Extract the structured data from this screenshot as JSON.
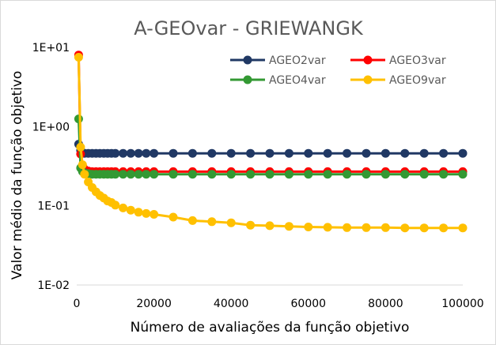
{
  "chart_data": {
    "type": "line",
    "title": "A-GEOvar - GRIEWANGK",
    "xlabel": "Número de avaliações da função objetivo",
    "ylabel": "Valor médio da função objetivo",
    "xlim": [
      0,
      100000
    ],
    "ylim": [
      0.01,
      10
    ],
    "yscale": "log",
    "x_ticks": [
      0,
      20000,
      40000,
      60000,
      80000,
      100000
    ],
    "x_tick_labels": [
      "0",
      "20000",
      "40000",
      "60000",
      "80000",
      "100000"
    ],
    "y_ticks": [
      0.01,
      0.1,
      1,
      10
    ],
    "y_tick_labels": [
      "1E-02",
      "1E-01",
      "1E+00",
      "1E+01"
    ],
    "grid": false,
    "legend": "top-right",
    "series": [
      {
        "name": "AGEO2var",
        "color": "#203864",
        "x": [
          500,
          1000,
          1500,
          2000,
          3000,
          4000,
          5000,
          6000,
          7000,
          8000,
          9000,
          10000,
          12000,
          14000,
          16000,
          18000,
          20000,
          25000,
          30000,
          35000,
          40000,
          45000,
          50000,
          55000,
          60000,
          65000,
          70000,
          75000,
          80000,
          85000,
          90000,
          95000,
          100000
        ],
        "y": [
          0.6,
          0.5,
          0.47,
          0.46,
          0.46,
          0.46,
          0.46,
          0.46,
          0.46,
          0.46,
          0.46,
          0.46,
          0.46,
          0.46,
          0.46,
          0.46,
          0.46,
          0.46,
          0.46,
          0.46,
          0.46,
          0.46,
          0.46,
          0.46,
          0.46,
          0.46,
          0.46,
          0.46,
          0.46,
          0.46,
          0.46,
          0.46,
          0.46
        ]
      },
      {
        "name": "AGEO3var",
        "color": "#ff0000",
        "x": [
          500,
          1000,
          1500,
          2000,
          3000,
          4000,
          5000,
          6000,
          7000,
          8000,
          9000,
          10000,
          12000,
          14000,
          16000,
          18000,
          20000,
          25000,
          30000,
          35000,
          40000,
          45000,
          50000,
          55000,
          60000,
          65000,
          70000,
          75000,
          80000,
          85000,
          90000,
          95000,
          100000
        ],
        "y": [
          8.0,
          0.45,
          0.32,
          0.29,
          0.275,
          0.27,
          0.27,
          0.27,
          0.27,
          0.27,
          0.27,
          0.27,
          0.27,
          0.27,
          0.27,
          0.27,
          0.27,
          0.27,
          0.27,
          0.27,
          0.27,
          0.27,
          0.27,
          0.27,
          0.27,
          0.27,
          0.27,
          0.27,
          0.27,
          0.27,
          0.27,
          0.27,
          0.27
        ]
      },
      {
        "name": "AGEO4var",
        "color": "#339933",
        "x": [
          500,
          1000,
          1500,
          2000,
          3000,
          4000,
          5000,
          6000,
          7000,
          8000,
          9000,
          10000,
          12000,
          14000,
          16000,
          18000,
          20000,
          25000,
          30000,
          35000,
          40000,
          45000,
          50000,
          55000,
          60000,
          65000,
          70000,
          75000,
          80000,
          85000,
          90000,
          95000,
          100000
        ],
        "y": [
          1.25,
          0.3,
          0.27,
          0.26,
          0.255,
          0.25,
          0.25,
          0.25,
          0.25,
          0.25,
          0.25,
          0.25,
          0.25,
          0.25,
          0.25,
          0.25,
          0.25,
          0.25,
          0.25,
          0.25,
          0.25,
          0.25,
          0.25,
          0.25,
          0.25,
          0.25,
          0.25,
          0.25,
          0.25,
          0.25,
          0.25,
          0.25,
          0.25
        ]
      },
      {
        "name": "AGEO9var",
        "color": "#ffc000",
        "x": [
          500,
          1000,
          1500,
          2000,
          3000,
          4000,
          5000,
          6000,
          7000,
          8000,
          9000,
          10000,
          12000,
          14000,
          16000,
          18000,
          20000,
          25000,
          30000,
          35000,
          40000,
          45000,
          50000,
          55000,
          60000,
          65000,
          70000,
          75000,
          80000,
          85000,
          90000,
          95000,
          100000
        ],
        "y": [
          7.5,
          0.55,
          0.33,
          0.25,
          0.2,
          0.17,
          0.15,
          0.135,
          0.125,
          0.115,
          0.11,
          0.102,
          0.094,
          0.088,
          0.083,
          0.08,
          0.078,
          0.072,
          0.065,
          0.063,
          0.061,
          0.057,
          0.056,
          0.055,
          0.054,
          0.0535,
          0.053,
          0.053,
          0.053,
          0.0525,
          0.0525,
          0.0525,
          0.0525
        ]
      }
    ]
  }
}
